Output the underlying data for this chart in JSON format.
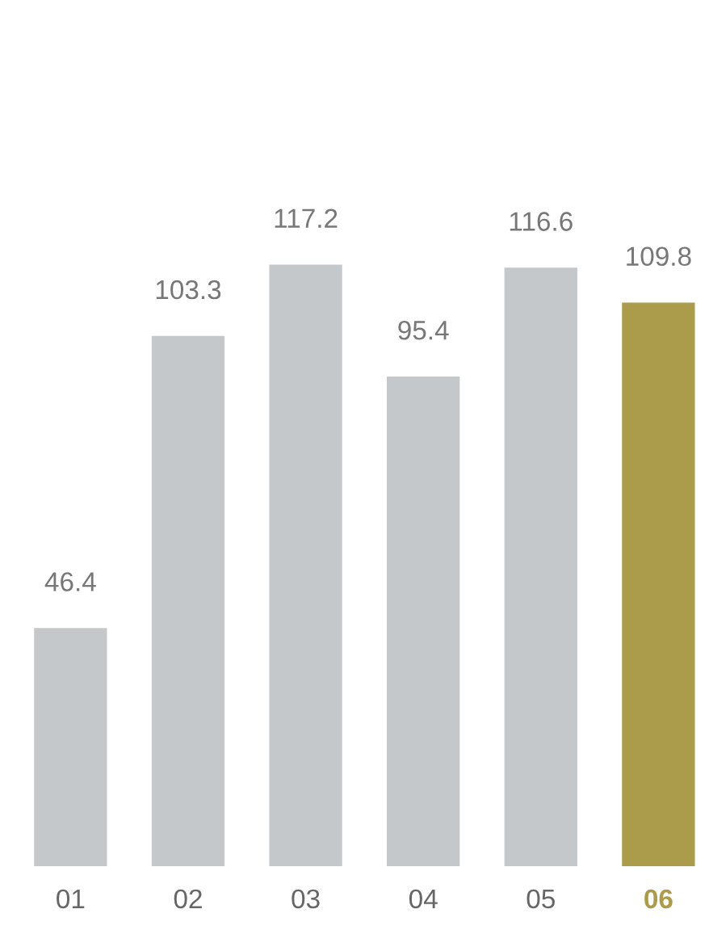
{
  "chart_data": {
    "type": "bar",
    "categories": [
      "01",
      "02",
      "03",
      "04",
      "05",
      "06"
    ],
    "values": [
      46.4,
      103.3,
      117.2,
      95.4,
      116.6,
      109.8
    ],
    "colors": [
      "#c5c8cb",
      "#c5c8cb",
      "#c5c8cb",
      "#c5c8cb",
      "#c5c8cb",
      "#ab9c4c"
    ],
    "data_labels": true,
    "grid": false,
    "legend": false
  }
}
